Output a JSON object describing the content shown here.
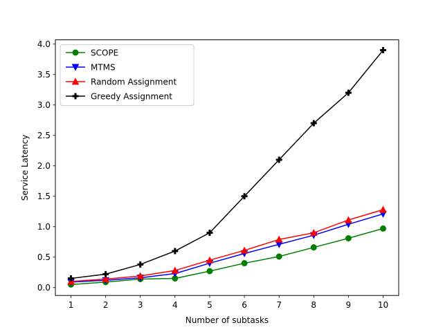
{
  "chart_data": {
    "type": "line",
    "title": "",
    "xlabel": "Number of subtasks",
    "ylabel": "Service Latency",
    "x": [
      1,
      2,
      3,
      4,
      5,
      6,
      7,
      8,
      9,
      10
    ],
    "xlim": [
      0.55,
      10.45
    ],
    "ylim": [
      -0.13,
      4.07
    ],
    "xticks": [
      "1",
      "2",
      "3",
      "4",
      "5",
      "6",
      "7",
      "8",
      "9",
      "10"
    ],
    "yticks": [
      "0.0",
      "0.5",
      "1.0",
      "1.5",
      "2.0",
      "2.5",
      "3.0",
      "3.5",
      "4.0"
    ],
    "grid": false,
    "legend_position": "top-left",
    "series": [
      {
        "name": "SCOPE",
        "color": "#008000",
        "marker": "circle",
        "values": [
          0.05,
          0.09,
          0.14,
          0.15,
          0.27,
          0.4,
          0.51,
          0.66,
          0.81,
          0.97
        ]
      },
      {
        "name": "MTMS",
        "color": "#0000ff",
        "marker": "triangle-down",
        "values": [
          0.09,
          0.12,
          0.16,
          0.23,
          0.4,
          0.56,
          0.71,
          0.86,
          1.04,
          1.21
        ]
      },
      {
        "name": "Random Assignment",
        "color": "#ff0000",
        "marker": "triangle-up",
        "values": [
          0.1,
          0.14,
          0.19,
          0.28,
          0.45,
          0.61,
          0.79,
          0.9,
          1.11,
          1.28
        ]
      },
      {
        "name": "Greedy Assignment",
        "color": "#000000",
        "marker": "plus",
        "values": [
          0.15,
          0.22,
          0.38,
          0.6,
          0.9,
          1.5,
          2.1,
          2.7,
          3.2,
          3.9
        ]
      }
    ]
  }
}
